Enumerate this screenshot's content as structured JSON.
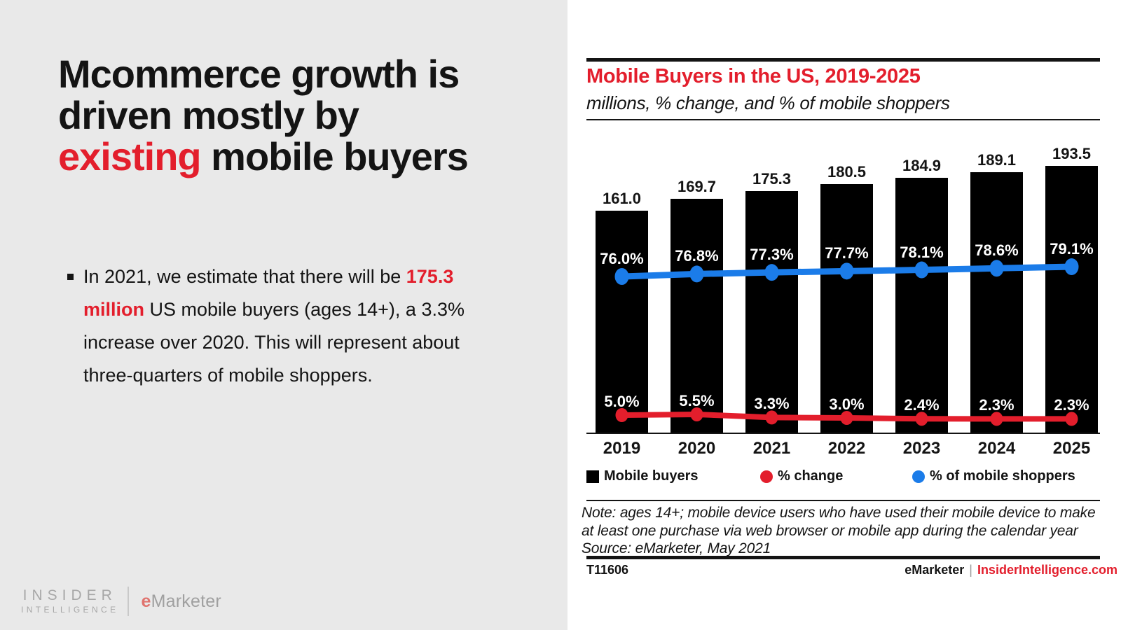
{
  "slide": {
    "headline": {
      "line1": "Mcommerce growth is",
      "line2": "driven mostly by",
      "highlight": "existing",
      "line3_rest": " mobile buyers"
    },
    "bullet": {
      "pre": "In 2021, we estimate that there will be ",
      "highlight": "175.3 million",
      "post": " US mobile buyers (ages 14+), a 3.3% increase over 2020. This will represent about three-quarters of mobile shoppers."
    },
    "brand": {
      "insider_top": "INSIDER",
      "insider_bottom": "INTELLIGENCE",
      "emarketer_e": "e",
      "emarketer_rest": "Marketer"
    }
  },
  "chart_data": {
    "type": "bar",
    "title": "Mobile Buyers in the US, 2019-2025",
    "subtitle": "millions, % change, and % of mobile shoppers",
    "categories": [
      "2019",
      "2020",
      "2021",
      "2022",
      "2023",
      "2024",
      "2025"
    ],
    "series": [
      {
        "name": "Mobile buyers",
        "kind": "bar",
        "unit": "millions",
        "color": "#000000",
        "values": [
          161.0,
          169.7,
          175.3,
          180.5,
          184.9,
          189.1,
          193.5
        ]
      },
      {
        "name": "% change",
        "kind": "line",
        "unit": "%",
        "color": "#e31e2c",
        "values": [
          5.0,
          5.5,
          3.3,
          3.0,
          2.4,
          2.3,
          2.3
        ]
      },
      {
        "name": "% of mobile shoppers",
        "kind": "line",
        "unit": "%",
        "color": "#1b7ce9",
        "values": [
          76.0,
          76.8,
          77.3,
          77.7,
          78.1,
          78.6,
          79.1
        ]
      }
    ],
    "ylim": [
      0,
      200
    ],
    "grid": false,
    "legend_position": "bottom"
  },
  "note": {
    "line1": "Note: ages 14+; mobile device users who have used their mobile device to make",
    "line2": "at least one purchase via web browser or mobile app during the calendar year",
    "source": "Source: eMarketer, May 2021"
  },
  "footer": {
    "chart_id": "T11606",
    "brand_left": "eMarketer",
    "divider": "|",
    "brand_right": "InsiderIntelligence.com"
  },
  "colors": {
    "accent_red": "#e31e2c",
    "line_blue": "#1b7ce9",
    "bar_black": "#000000",
    "panel_gray": "#e9e9e9"
  }
}
